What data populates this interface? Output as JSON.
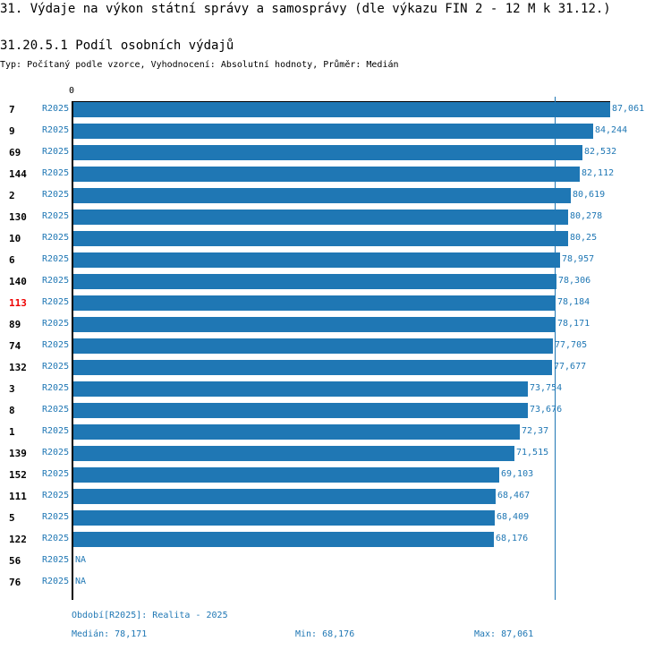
{
  "title": "31. Výdaje na výkon státní správy a samosprávy (dle výkazu FIN 2 - 12 M k 31.12.)",
  "subtitle": "31.20.5.1 Podíl osobních výdajů",
  "info": "Typ: Počítaný podle vzorce, Vyhodnocení: Absolutní hodnoty, Průměr: Medián",
  "chart_data": {
    "type": "bar",
    "orientation": "horizontal",
    "axis_zero_label": "0",
    "xlim": [
      0,
      87.061
    ],
    "median": 78.171,
    "highlight_color": "#ee0000",
    "bar_color": "#1f77b4",
    "rows": [
      {
        "id": "7",
        "period": "R2025",
        "value": 87.061,
        "label": "87,061"
      },
      {
        "id": "9",
        "period": "R2025",
        "value": 84.244,
        "label": "84,244"
      },
      {
        "id": "69",
        "period": "R2025",
        "value": 82.532,
        "label": "82,532"
      },
      {
        "id": "144",
        "period": "R2025",
        "value": 82.112,
        "label": "82,112"
      },
      {
        "id": "2",
        "period": "R2025",
        "value": 80.619,
        "label": "80,619"
      },
      {
        "id": "130",
        "period": "R2025",
        "value": 80.278,
        "label": "80,278"
      },
      {
        "id": "10",
        "period": "R2025",
        "value": 80.25,
        "label": "80,25"
      },
      {
        "id": "6",
        "period": "R2025",
        "value": 78.957,
        "label": "78,957"
      },
      {
        "id": "140",
        "period": "R2025",
        "value": 78.306,
        "label": "78,306"
      },
      {
        "id": "113",
        "period": "R2025",
        "value": 78.184,
        "label": "78,184",
        "highlight": true
      },
      {
        "id": "89",
        "period": "R2025",
        "value": 78.171,
        "label": "78,171"
      },
      {
        "id": "74",
        "period": "R2025",
        "value": 77.705,
        "label": "77,705"
      },
      {
        "id": "132",
        "period": "R2025",
        "value": 77.677,
        "label": "77,677"
      },
      {
        "id": "3",
        "period": "R2025",
        "value": 73.754,
        "label": "73,754"
      },
      {
        "id": "8",
        "period": "R2025",
        "value": 73.676,
        "label": "73,676"
      },
      {
        "id": "1",
        "period": "R2025",
        "value": 72.37,
        "label": "72,37"
      },
      {
        "id": "139",
        "period": "R2025",
        "value": 71.515,
        "label": "71,515"
      },
      {
        "id": "152",
        "period": "R2025",
        "value": 69.103,
        "label": "69,103"
      },
      {
        "id": "111",
        "period": "R2025",
        "value": 68.467,
        "label": "68,467"
      },
      {
        "id": "5",
        "period": "R2025",
        "value": 68.409,
        "label": "68,409"
      },
      {
        "id": "122",
        "period": "R2025",
        "value": 68.176,
        "label": "68,176"
      },
      {
        "id": "56",
        "period": "R2025",
        "value": null,
        "label": "NA"
      },
      {
        "id": "76",
        "period": "R2025",
        "value": null,
        "label": "NA"
      }
    ]
  },
  "footer": {
    "period": "Období[R2025]: Realita - 2025",
    "median": "Medián: 78,171",
    "min": "Min: 68,176",
    "max": "Max: 87,061"
  }
}
